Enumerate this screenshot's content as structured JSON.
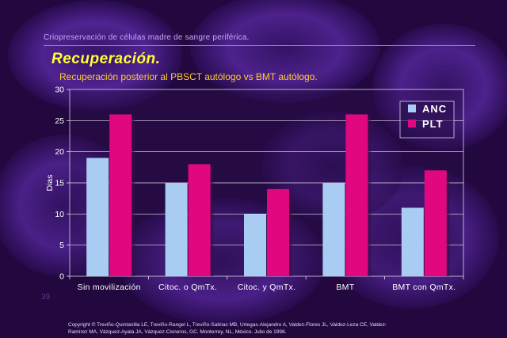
{
  "slide": {
    "header": "Criopreservación de células madre de sangre periférica.",
    "title": "Recuperación.",
    "subtitle": "Recuperación posterior al PBSCT autólogo vs BMT autólogo.",
    "slide_number": "39",
    "copyright": "Copyright © Treviño-Quintanilla LE, Treviño-Rangel L, Treviño-Salinas MB, Urtegas-Alejandro A, Valdez-Flores JL, Valdez-Leza CE, Valdez-Ramírez MA, Vázquez-Ayala JA, Vázquez-Cisneros, GC.  Monterrey, NL, México. Julio de 1998."
  },
  "colors": {
    "accent_title": "#ffff33",
    "subtitle": "#ffcc33",
    "anc": "#a9cdf2",
    "plt": "#e0077f"
  },
  "chart_data": {
    "type": "bar",
    "title": "",
    "xlabel": "",
    "ylabel": "Dias",
    "ylim": [
      0,
      30
    ],
    "yticks": [
      0,
      5,
      10,
      15,
      20,
      25,
      30
    ],
    "categories": [
      "Sin movilización",
      "Citoc. o QmTx.",
      "Citoc. y QmTx.",
      "BMT",
      "BMT con QmTx."
    ],
    "series": [
      {
        "name": "ANC",
        "color": "#a9cdf2",
        "values": [
          19,
          15,
          10,
          15,
          11
        ]
      },
      {
        "name": "PLT",
        "color": "#e0077f",
        "values": [
          26,
          18,
          14,
          26,
          17
        ]
      }
    ],
    "grid": true,
    "legend": "top-right"
  }
}
